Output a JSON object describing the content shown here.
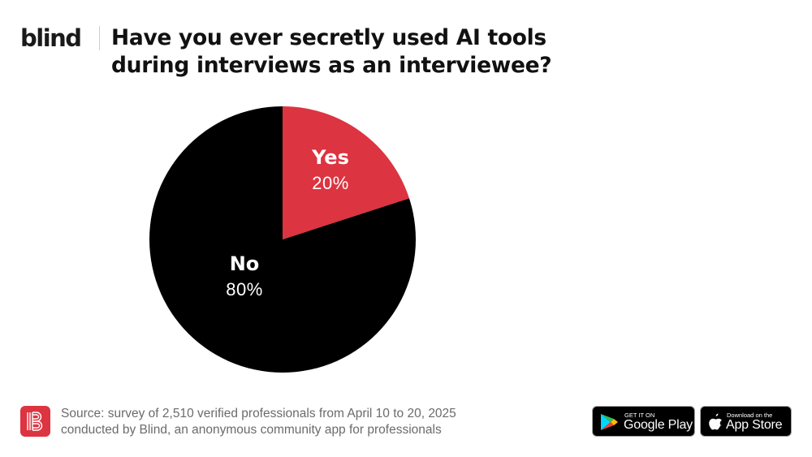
{
  "header": {
    "brand": "blind",
    "title_lines": [
      "Have you ever secretly used AI tools",
      "during interviews as an interviewee?"
    ]
  },
  "chart_data": {
    "type": "pie",
    "title": "Have you ever secretly used AI tools during interviews as an interviewee?",
    "categories": [
      "Yes",
      "No"
    ],
    "values": [
      20,
      80
    ],
    "unit": "%",
    "colors": [
      "#dc3440",
      "#000000"
    ],
    "labels": [
      {
        "name": "Yes",
        "value": "20%"
      },
      {
        "name": "No",
        "value": "80%"
      }
    ],
    "start_angle_deg": 0,
    "direction": "clockwise",
    "legend": "none (inline labels)"
  },
  "footer": {
    "icon": "blind-b-logo-icon",
    "source_lines": [
      "Source: survey of 2,510 verified professionals from April 10 to 20, 2025",
      "conducted by Blind, an anonymous community app for professionals"
    ],
    "badges": {
      "google_play": {
        "small": "GET IT ON",
        "big": "Google Play",
        "icon": "google-play-icon"
      },
      "app_store": {
        "small": "Download on the",
        "big": "App Store",
        "icon": "apple-icon"
      }
    }
  },
  "colors": {
    "accent_red": "#dc3440",
    "black": "#000000",
    "source_gray": "#6b6b6b"
  }
}
